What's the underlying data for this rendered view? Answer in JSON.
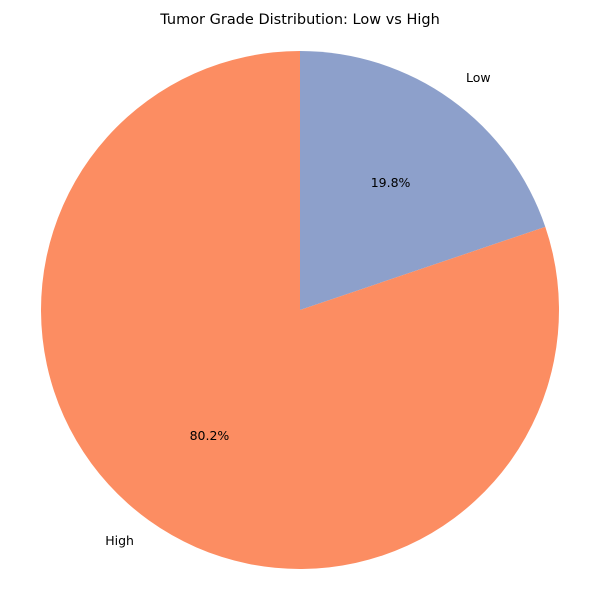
{
  "chart_data": {
    "type": "pie",
    "title": "Tumor Grade Distribution: Low vs High",
    "slices": [
      {
        "label": "Low",
        "value": 19.8,
        "pct_label": "19.8%",
        "color": "#8da0cb"
      },
      {
        "label": "High",
        "value": 80.2,
        "pct_label": "80.2%",
        "color": "#fc8d62"
      }
    ],
    "start_angle_deg": 90,
    "direction": "clockwise",
    "legend": "none"
  }
}
